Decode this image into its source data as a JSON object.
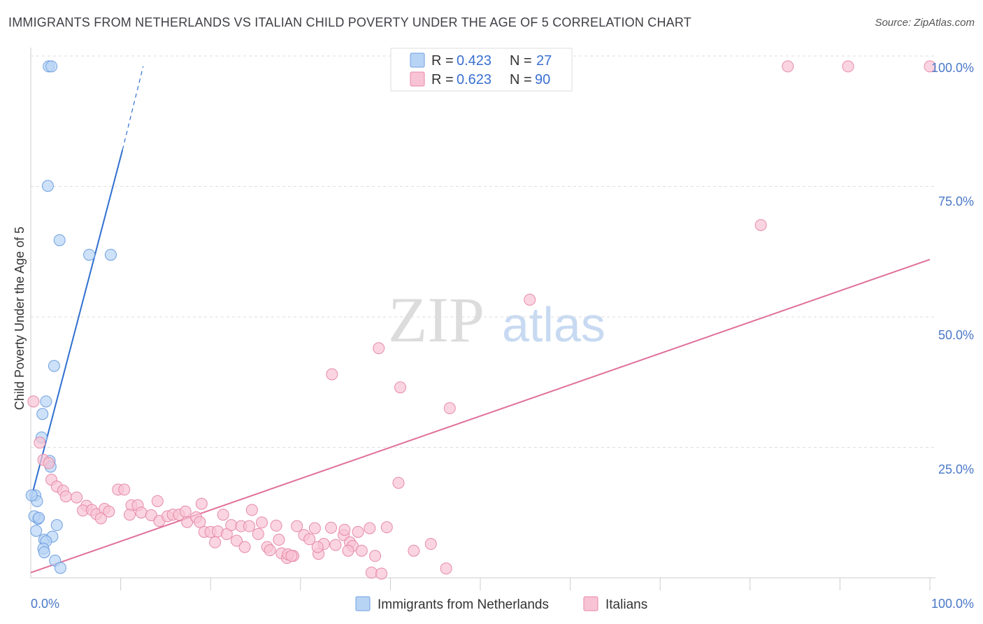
{
  "header": {
    "title": "IMMIGRANTS FROM NETHERLANDS VS ITALIAN CHILD POVERTY UNDER THE AGE OF 5 CORRELATION CHART",
    "source": "Source: ZipAtlas.com"
  },
  "watermark": {
    "zip": "ZIP",
    "atlas": "atlas"
  },
  "colors": {
    "blue_fill": "#b8d4f5",
    "blue_stroke": "#6f9fe0",
    "blue_line": "#2f6fcf",
    "pink_fill": "#f8c3d4",
    "pink_stroke": "#e68aa8",
    "pink_line": "#e0709a",
    "axis_text": "#4a78c8",
    "grid": "#dddddd"
  },
  "chart_data": {
    "type": "scatter",
    "xlabel": "",
    "ylabel": "Child Poverty Under the Age of 5",
    "xlim": [
      0,
      100
    ],
    "ylim": [
      0,
      100
    ],
    "x_tick_labels": [
      "0.0%",
      "100.0%"
    ],
    "y_tick_labels": [
      "25.0%",
      "50.0%",
      "75.0%",
      "100.0%"
    ],
    "y_ticks": [
      25,
      50,
      75,
      100
    ],
    "grid": "horizontal dashed",
    "legend": {
      "position": "top-center",
      "entries": [
        {
          "series": "Immigrants from Netherlands",
          "r_label": "R =",
          "r": "0.423",
          "n_label": "N =",
          "n": "27"
        },
        {
          "series": "Italians",
          "r_label": "R =",
          "r": "0.623",
          "n_label": "N =",
          "n": "90"
        }
      ]
    },
    "series": [
      {
        "name": "Immigrants from Netherlands",
        "color": "blue",
        "points": [
          [
            2.0,
            98.0
          ],
          [
            2.3,
            98.0
          ],
          [
            1.9,
            75.1
          ],
          [
            3.2,
            64.7
          ],
          [
            6.5,
            61.9
          ],
          [
            8.9,
            61.9
          ],
          [
            2.6,
            40.6
          ],
          [
            1.7,
            33.8
          ],
          [
            1.3,
            31.4
          ],
          [
            1.2,
            26.9
          ],
          [
            2.1,
            22.4
          ],
          [
            2.2,
            21.3
          ],
          [
            0.5,
            15.8
          ],
          [
            0.7,
            14.7
          ],
          [
            0.8,
            11.3
          ],
          [
            0.4,
            11.8
          ],
          [
            0.9,
            11.5
          ],
          [
            2.9,
            10.1
          ],
          [
            0.6,
            9.0
          ],
          [
            1.5,
            7.3
          ],
          [
            2.4,
            7.9
          ],
          [
            1.7,
            7.0
          ],
          [
            1.4,
            5.6
          ],
          [
            1.5,
            4.9
          ],
          [
            2.7,
            3.3
          ],
          [
            3.3,
            1.9
          ],
          [
            0.1,
            15.8
          ]
        ],
        "trend": {
          "x0": 0,
          "y0": 15.0,
          "x1": 10.2,
          "y1": 82.0,
          "dash_x1": 12.5,
          "dash_y1": 98.0
        }
      },
      {
        "name": "Italians",
        "color": "pink",
        "points": [
          [
            84.2,
            98.0
          ],
          [
            90.9,
            98.0
          ],
          [
            100.0,
            98.0
          ],
          [
            81.2,
            67.6
          ],
          [
            55.5,
            53.3
          ],
          [
            38.7,
            44.0
          ],
          [
            33.5,
            39.0
          ],
          [
            41.1,
            36.5
          ],
          [
            46.6,
            32.5
          ],
          [
            0.3,
            33.8
          ],
          [
            1.0,
            25.9
          ],
          [
            1.4,
            22.6
          ],
          [
            2.0,
            22.0
          ],
          [
            2.3,
            18.8
          ],
          [
            2.9,
            17.5
          ],
          [
            3.6,
            16.7
          ],
          [
            3.9,
            15.6
          ],
          [
            5.1,
            15.4
          ],
          [
            6.2,
            13.8
          ],
          [
            5.8,
            12.9
          ],
          [
            6.8,
            13.0
          ],
          [
            7.3,
            12.2
          ],
          [
            8.2,
            13.2
          ],
          [
            7.8,
            11.4
          ],
          [
            8.7,
            12.7
          ],
          [
            9.7,
            16.9
          ],
          [
            10.4,
            16.9
          ],
          [
            11.2,
            13.9
          ],
          [
            11.0,
            12.1
          ],
          [
            11.9,
            13.9
          ],
          [
            12.3,
            12.5
          ],
          [
            13.4,
            12.0
          ],
          [
            14.1,
            14.7
          ],
          [
            14.3,
            10.9
          ],
          [
            15.2,
            11.8
          ],
          [
            15.8,
            12.1
          ],
          [
            16.5,
            12.1
          ],
          [
            17.4,
            10.7
          ],
          [
            17.2,
            12.7
          ],
          [
            18.4,
            11.6
          ],
          [
            18.8,
            10.7
          ],
          [
            19.0,
            14.2
          ],
          [
            19.3,
            8.8
          ],
          [
            20.0,
            8.8
          ],
          [
            20.8,
            8.9
          ],
          [
            21.4,
            12.1
          ],
          [
            21.8,
            8.4
          ],
          [
            22.3,
            10.1
          ],
          [
            22.9,
            7.1
          ],
          [
            23.4,
            9.9
          ],
          [
            23.8,
            5.9
          ],
          [
            24.3,
            9.9
          ],
          [
            24.6,
            13.0
          ],
          [
            25.3,
            8.4
          ],
          [
            25.7,
            10.6
          ],
          [
            26.3,
            5.9
          ],
          [
            27.3,
            10.0
          ],
          [
            27.9,
            4.7
          ],
          [
            27.6,
            7.3
          ],
          [
            28.5,
            3.8
          ],
          [
            29.2,
            4.2
          ],
          [
            28.6,
            4.5
          ],
          [
            29.6,
            9.9
          ],
          [
            30.4,
            8.2
          ],
          [
            31.0,
            7.4
          ],
          [
            31.6,
            9.5
          ],
          [
            32.0,
            4.6
          ],
          [
            32.6,
            6.5
          ],
          [
            33.4,
            9.6
          ],
          [
            33.9,
            6.3
          ],
          [
            34.8,
            8.2
          ],
          [
            35.5,
            6.8
          ],
          [
            35.8,
            6.1
          ],
          [
            35.3,
            5.2
          ],
          [
            36.8,
            5.2
          ],
          [
            37.7,
            9.5
          ],
          [
            36.4,
            8.8
          ],
          [
            38.3,
            4.2
          ],
          [
            37.9,
            1.0
          ],
          [
            39.0,
            0.8
          ],
          [
            39.6,
            9.7
          ],
          [
            40.9,
            18.2
          ],
          [
            42.6,
            5.2
          ],
          [
            44.5,
            6.5
          ],
          [
            46.2,
            1.8
          ],
          [
            34.9,
            9.2
          ],
          [
            26.6,
            5.3
          ],
          [
            20.5,
            6.8
          ],
          [
            31.9,
            5.9
          ],
          [
            29.0,
            4.2
          ]
        ],
        "trend": {
          "x0": 0,
          "y0": 1.0,
          "x1": 100,
          "y1": 61.0
        }
      }
    ]
  }
}
